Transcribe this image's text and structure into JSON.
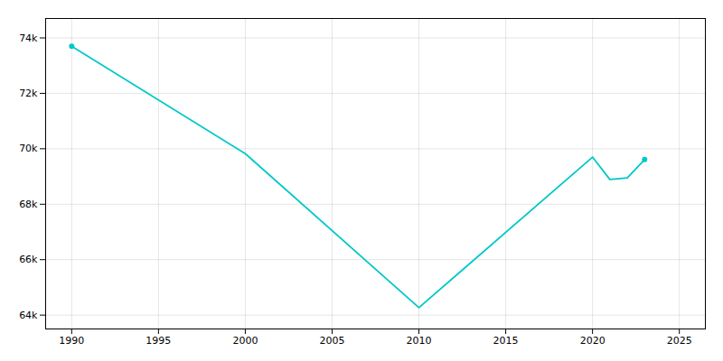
{
  "chart_data": {
    "type": "line",
    "x": [
      1990,
      2000,
      2010,
      2020,
      2021,
      2022,
      2023
    ],
    "values": [
      73700,
      69824,
      64270,
      69700,
      68892,
      68950,
      69612
    ],
    "color": "#00C8C8",
    "marker": "endpoints",
    "xlim": [
      1988.5,
      2026.5
    ],
    "xticks": [
      1990,
      1995,
      2000,
      2005,
      2010,
      2015,
      2020,
      2025
    ],
    "ylim": [
      63500,
      74700
    ],
    "yticks": [
      {
        "value": 64000,
        "label": "64k"
      },
      {
        "value": 66000,
        "label": "66k"
      },
      {
        "value": 68000,
        "label": "68k"
      },
      {
        "value": 70000,
        "label": "70k"
      },
      {
        "value": 72000,
        "label": "72k"
      },
      {
        "value": 74000,
        "label": "74k"
      }
    ],
    "grid": true
  }
}
